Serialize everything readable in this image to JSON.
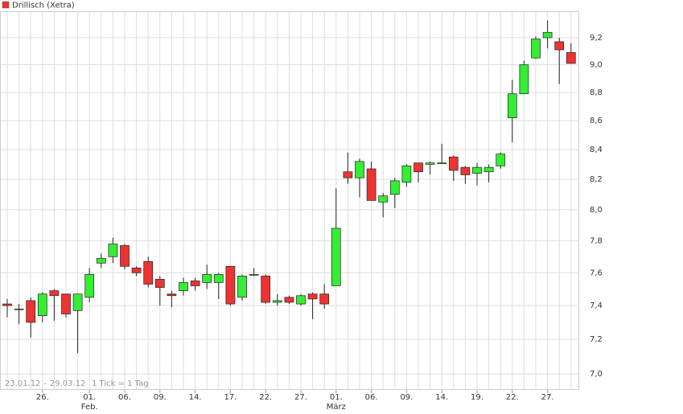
{
  "chart_data": {
    "type": "candlestick",
    "log_scale": true,
    "ylim": [
      6.91,
      9.4
    ],
    "yticks": [
      {
        "value": 7.0,
        "label": "7,0"
      },
      {
        "value": 7.2,
        "label": "7,2"
      },
      {
        "value": 7.4,
        "label": "7,4"
      },
      {
        "value": 7.6,
        "label": "7,6"
      },
      {
        "value": 7.8,
        "label": "7,8"
      },
      {
        "value": 8.0,
        "label": "8,0"
      },
      {
        "value": 8.2,
        "label": "8,2"
      },
      {
        "value": 8.4,
        "label": "8,4"
      },
      {
        "value": 8.6,
        "label": "8,6"
      },
      {
        "value": 8.8,
        "label": "8,8"
      },
      {
        "value": 9.0,
        "label": "9,0"
      },
      {
        "value": 9.2,
        "label": "9,2"
      }
    ],
    "grid": true,
    "categories": [
      null,
      null,
      null,
      "26.",
      null,
      null,
      null,
      "01.",
      null,
      null,
      "06.",
      null,
      null,
      "09.",
      null,
      null,
      "14.",
      null,
      null,
      "17.",
      null,
      null,
      "22.",
      null,
      null,
      "27.",
      null,
      null,
      "01.",
      null,
      null,
      "06.",
      null,
      null,
      "09.",
      null,
      null,
      "14.",
      null,
      null,
      "19.",
      null,
      null,
      "22.",
      null,
      null,
      "27.",
      null,
      null
    ],
    "month_labels": [
      {
        "index": 7,
        "label": "Feb."
      },
      {
        "index": 28,
        "label": "März"
      }
    ],
    "date_range": "23.01.12 – 29.03.12",
    "tick_note": "1 Tick = 1 Tag",
    "up_color": "#33ee33",
    "down_color": "#ee3333",
    "series": [
      {
        "name": "Drillisch (Xetra)",
        "color": "#ee3333",
        "open": [
          7.41,
          7.38,
          7.43,
          7.34,
          7.49,
          7.47,
          7.37,
          7.45,
          7.66,
          7.7,
          7.77,
          7.63,
          7.67,
          7.56,
          7.47,
          7.49,
          7.55,
          7.54,
          7.54,
          7.64,
          7.45,
          7.59,
          7.58,
          7.42,
          7.45,
          7.41,
          7.47,
          7.47,
          7.52,
          8.25,
          8.21,
          8.27,
          8.05,
          8.1,
          8.18,
          8.31,
          8.3,
          8.31,
          8.35,
          8.28,
          8.24,
          8.25,
          8.29,
          8.62,
          8.79,
          9.05,
          9.2,
          9.17,
          9.09
        ],
        "high": [
          7.44,
          7.41,
          7.45,
          7.48,
          7.5,
          7.47,
          7.47,
          7.63,
          7.72,
          7.82,
          7.78,
          7.64,
          7.7,
          7.58,
          7.49,
          7.57,
          7.57,
          7.65,
          7.6,
          7.64,
          7.59,
          7.63,
          7.59,
          7.47,
          7.46,
          7.47,
          7.48,
          7.53,
          8.14,
          8.38,
          8.34,
          8.32,
          8.11,
          8.21,
          8.3,
          8.31,
          8.32,
          8.44,
          8.36,
          8.29,
          8.31,
          8.3,
          8.38,
          8.89,
          9.03,
          9.21,
          9.33,
          9.2,
          9.16
        ],
        "low": [
          7.33,
          7.29,
          7.21,
          7.3,
          7.31,
          7.33,
          7.12,
          7.42,
          7.63,
          7.66,
          7.62,
          7.58,
          7.51,
          7.4,
          7.39,
          7.46,
          7.49,
          7.5,
          7.44,
          7.4,
          7.43,
          7.58,
          7.41,
          7.4,
          7.41,
          7.4,
          7.32,
          7.38,
          7.52,
          8.17,
          8.08,
          8.06,
          7.95,
          8.01,
          8.15,
          8.18,
          8.23,
          8.31,
          8.19,
          8.17,
          8.16,
          8.18,
          8.27,
          8.45,
          8.79,
          9.04,
          9.12,
          8.86,
          9.01
        ],
        "close": [
          7.4,
          7.38,
          7.3,
          7.47,
          7.46,
          7.35,
          7.47,
          7.59,
          7.69,
          7.78,
          7.64,
          7.6,
          7.53,
          7.51,
          7.46,
          7.54,
          7.52,
          7.59,
          7.59,
          7.41,
          7.58,
          7.59,
          7.42,
          7.43,
          7.42,
          7.46,
          7.44,
          7.41,
          7.88,
          8.21,
          8.32,
          8.06,
          8.09,
          8.19,
          8.29,
          8.25,
          8.31,
          8.31,
          8.26,
          8.23,
          8.28,
          8.28,
          8.37,
          8.79,
          9.0,
          9.19,
          9.24,
          9.11,
          9.01
        ]
      }
    ]
  }
}
